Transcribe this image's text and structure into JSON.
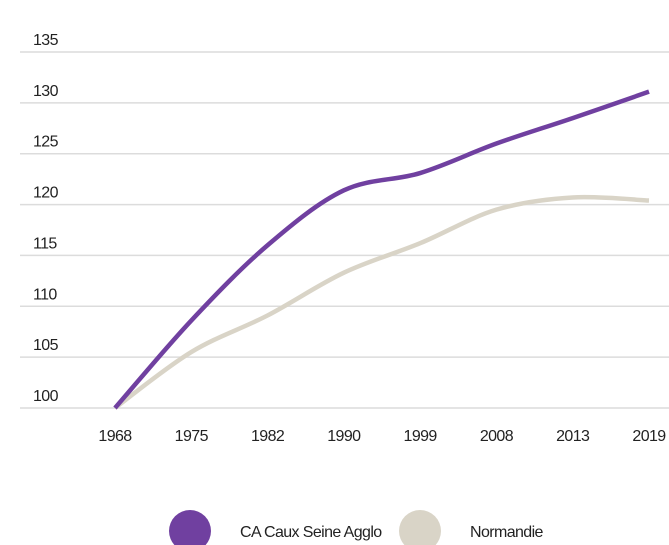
{
  "chart_data": {
    "type": "line",
    "categories": [
      "1968",
      "1975",
      "1982",
      "1990",
      "1999",
      "2008",
      "2013",
      "2019"
    ],
    "series": [
      {
        "name": "CA Caux Seine Agglo",
        "color": "#7040a0",
        "values": [
          100,
          108.6,
          116,
          121.4,
          123.1,
          126,
          128.5,
          131.1
        ]
      },
      {
        "name": "Normandie",
        "color": "#d9d4c7",
        "values": [
          100,
          105.5,
          109.1,
          113.3,
          116.2,
          119.5,
          120.7,
          120.4
        ]
      }
    ],
    "ylim": [
      100,
      135
    ],
    "yticks": [
      100,
      105,
      110,
      115,
      120,
      125,
      130,
      135
    ],
    "grid": true
  }
}
